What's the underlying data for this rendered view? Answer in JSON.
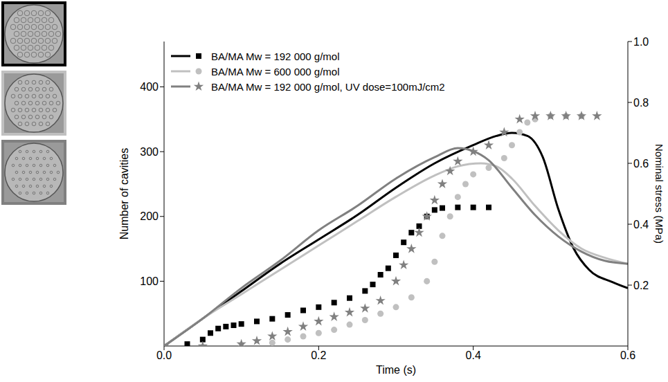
{
  "chart_data": {
    "type": "line",
    "x_label": "Time (s)",
    "y_label": "Number of cavities",
    "y2_label": "Nominal stress (MPa)",
    "xlim": [
      0,
      0.6
    ],
    "xticks": [
      {
        "value": 0,
        "label": "0.0"
      },
      0.2,
      0.4,
      0.6
    ],
    "ylim": [
      0,
      470
    ],
    "yticks": [
      100,
      200,
      300,
      400
    ],
    "y2lim": [
      0,
      1
    ],
    "y2ticks": [
      0.2,
      0.4,
      0.6,
      0.8,
      {
        "value": 1,
        "label": "1.0"
      }
    ],
    "legend": "upper left",
    "grid": false,
    "series": [
      {
        "name": "BA/MA Mw = 192 000 g/mol",
        "type": "line",
        "axis": "y2",
        "color": "#000000",
        "line_style": "solid",
        "x": [
          0,
          0.05,
          0.1,
          0.15,
          0.2,
          0.25,
          0.3,
          0.35,
          0.4,
          0.43,
          0.45,
          0.47,
          0.49,
          0.51,
          0.53,
          0.55,
          0.58,
          0.6
        ],
        "values": [
          0,
          0.09,
          0.18,
          0.27,
          0.35,
          0.43,
          0.52,
          0.6,
          0.66,
          0.69,
          0.7,
          0.69,
          0.62,
          0.45,
          0.32,
          0.25,
          0.21,
          0.19
        ]
      },
      {
        "name": "BA/MA Mw = 192 000 g/mol",
        "type": "scatter",
        "color": "#000000",
        "marker": "square",
        "x": [
          0.03,
          0.05,
          0.06,
          0.07,
          0.08,
          0.09,
          0.1,
          0.12,
          0.14,
          0.16,
          0.18,
          0.2,
          0.22,
          0.24,
          0.26,
          0.27,
          0.28,
          0.29,
          0.3,
          0.31,
          0.32,
          0.33,
          0.34,
          0.35,
          0.36,
          0.38,
          0.4,
          0.42
        ],
        "values": [
          3,
          10,
          20,
          27,
          30,
          32,
          34,
          38,
          42,
          48,
          55,
          60,
          67,
          74,
          85,
          95,
          110,
          120,
          140,
          160,
          175,
          185,
          200,
          210,
          213,
          214,
          214,
          214
        ]
      },
      {
        "name": "BA/MA Mw = 600 000 g/mol",
        "type": "line",
        "axis": "y2",
        "color": "#c0c0c0",
        "line_style": "solid",
        "x": [
          0,
          0.05,
          0.1,
          0.15,
          0.2,
          0.25,
          0.3,
          0.35,
          0.38,
          0.41,
          0.43,
          0.45,
          0.48,
          0.51,
          0.54,
          0.57,
          0.6
        ],
        "values": [
          0,
          0.09,
          0.17,
          0.25,
          0.33,
          0.41,
          0.49,
          0.56,
          0.59,
          0.6,
          0.59,
          0.55,
          0.46,
          0.38,
          0.32,
          0.29,
          0.27
        ]
      },
      {
        "name": "BA/MA Mw = 600 000 g/mol",
        "type": "scatter",
        "color": "#c0c0c0",
        "marker": "circle",
        "x": [
          0.1,
          0.14,
          0.16,
          0.18,
          0.2,
          0.22,
          0.24,
          0.26,
          0.28,
          0.3,
          0.32,
          0.34,
          0.35,
          0.36,
          0.37,
          0.38,
          0.39,
          0.4,
          0.42,
          0.44,
          0.45,
          0.46,
          0.47,
          0.48,
          0.5,
          0.52,
          0.54
        ],
        "values": [
          0,
          5,
          10,
          15,
          20,
          25,
          33,
          40,
          50,
          60,
          75,
          100,
          130,
          170,
          200,
          230,
          250,
          265,
          275,
          290,
          310,
          330,
          345,
          350,
          355,
          355,
          355
        ]
      },
      {
        "name": "BA/MA Mw = 192 000 g/mol, UV dose=100mJ/cm2",
        "type": "line",
        "axis": "y2",
        "color": "#808080",
        "line_style": "solid",
        "x": [
          0,
          0.05,
          0.1,
          0.15,
          0.2,
          0.25,
          0.3,
          0.35,
          0.38,
          0.4,
          0.42,
          0.45,
          0.48,
          0.51,
          0.54,
          0.57,
          0.6
        ],
        "values": [
          0,
          0.09,
          0.19,
          0.28,
          0.38,
          0.46,
          0.55,
          0.62,
          0.65,
          0.64,
          0.61,
          0.52,
          0.43,
          0.36,
          0.31,
          0.28,
          0.27
        ]
      },
      {
        "name": "BA/MA Mw = 192 000 g/mol, UV dose=100mJ/cm2",
        "type": "scatter",
        "color": "#808080",
        "marker": "star",
        "x": [
          0,
          0.05,
          0.1,
          0.12,
          0.14,
          0.16,
          0.18,
          0.2,
          0.22,
          0.24,
          0.26,
          0.28,
          0.3,
          0.31,
          0.32,
          0.33,
          0.34,
          0.35,
          0.36,
          0.37,
          0.38,
          0.4,
          0.42,
          0.44,
          0.46,
          0.48,
          0.5,
          0.52,
          0.54,
          0.56
        ],
        "values": [
          0,
          0,
          3,
          8,
          15,
          22,
          30,
          38,
          45,
          52,
          58,
          70,
          100,
          125,
          150,
          175,
          200,
          225,
          250,
          270,
          285,
          300,
          310,
          330,
          350,
          355,
          355,
          355,
          355,
          355
        ]
      }
    ]
  }
}
